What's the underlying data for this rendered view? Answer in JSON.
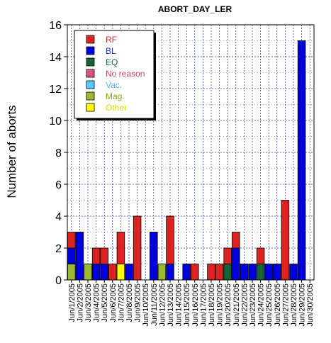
{
  "chart_data": {
    "type": "bar",
    "stacked": true,
    "title": "ABORT_DAY_LER",
    "xlabel": "",
    "ylabel": "Number of aborts",
    "ylim": [
      0,
      16
    ],
    "yticks": [
      0,
      2,
      4,
      6,
      8,
      10,
      12,
      14,
      16
    ],
    "grid": true,
    "legend_position": "top-left",
    "categories": [
      "Jun/1/2005",
      "Jun/2/2005",
      "Jun/3/2005",
      "Jun/4/2005",
      "Jun/5/2005",
      "Jun/6/2005",
      "Jun/7/2005",
      "Jun/8/2005",
      "Jun/9/2005",
      "Jun/10/2005",
      "Jun/11/2005",
      "Jun/12/2005",
      "Jun/13/2005",
      "Jun/14/2005",
      "Jun/15/2005",
      "Jun/16/2005",
      "Jun/17/2005",
      "Jun/18/2005",
      "Jun/19/2005",
      "Jun/20/2005",
      "Jun/21/2005",
      "Jun/22/2005",
      "Jun/23/2005",
      "Jun/24/2005",
      "Jun/25/2005",
      "Jun/26/2005",
      "Jun/27/2005",
      "Jun/28/2005",
      "Jun/29/2005",
      "Jun/30/2005"
    ],
    "series": [
      {
        "name": "Other",
        "color": "#ffff00",
        "values": [
          0,
          0,
          0,
          0,
          0,
          0,
          1,
          0,
          0,
          0,
          0,
          0,
          0,
          0,
          0,
          0,
          0,
          0,
          0,
          0,
          0,
          0,
          0,
          0,
          0,
          0,
          0,
          0,
          0,
          0
        ]
      },
      {
        "name": "Mag.",
        "color": "#99bb33",
        "values": [
          1,
          0,
          1,
          0,
          0,
          0,
          0,
          0,
          0,
          0,
          0,
          1,
          0,
          0,
          0,
          0,
          0,
          0,
          0,
          0,
          0,
          0,
          0,
          0,
          0,
          0,
          0,
          0,
          0,
          0
        ]
      },
      {
        "name": "Vac.",
        "color": "#55ccff",
        "values": [
          0,
          0,
          0,
          0,
          0,
          0,
          0,
          0,
          0,
          0,
          0,
          0,
          0,
          0,
          0,
          0,
          0,
          0,
          0,
          0,
          0,
          0,
          0,
          0,
          0,
          0,
          0,
          0,
          0,
          0
        ]
      },
      {
        "name": "No reason",
        "color": "#dd5577",
        "values": [
          0,
          0,
          0,
          0,
          0,
          0,
          0,
          0,
          0,
          0,
          0,
          0,
          0,
          0,
          0,
          0,
          0,
          0,
          0,
          0,
          0,
          0,
          0,
          0,
          0,
          0,
          0,
          0,
          0,
          0
        ]
      },
      {
        "name": "EQ",
        "color": "#116633",
        "values": [
          0,
          0,
          0,
          0,
          0,
          0,
          0,
          0,
          0,
          0,
          0,
          0,
          0,
          0,
          0,
          0,
          0,
          0,
          0,
          1,
          0,
          0,
          0,
          1,
          0,
          0,
          0,
          0,
          0,
          0
        ]
      },
      {
        "name": "BL",
        "color": "#0000dd",
        "values": [
          1,
          3,
          0,
          1,
          1,
          0,
          0,
          1,
          0,
          0,
          3,
          0,
          1,
          0,
          1,
          0,
          0,
          0,
          0,
          0,
          2,
          1,
          1,
          0,
          1,
          1,
          0,
          1,
          15,
          0
        ]
      },
      {
        "name": "RF",
        "color": "#dd2222",
        "values": [
          1,
          0,
          0,
          1,
          1,
          1,
          2,
          0,
          4,
          0,
          0,
          0,
          3,
          0,
          0,
          1,
          0,
          1,
          1,
          1,
          1,
          0,
          0,
          1,
          0,
          0,
          5,
          0,
          0,
          0
        ]
      }
    ]
  },
  "legend": {
    "items": [
      {
        "label": "RF",
        "color": "#dd2222",
        "text_color": "#cc3333"
      },
      {
        "label": "BL",
        "color": "#0000dd",
        "text_color": "#2233cc"
      },
      {
        "label": "EQ",
        "color": "#116633",
        "text_color": "#116633"
      },
      {
        "label": "No reason",
        "color": "#dd5577",
        "text_color": "#cc4466"
      },
      {
        "label": "Vac.",
        "color": "#55ccff",
        "text_color": "#44bbee"
      },
      {
        "label": "Mag.",
        "color": "#99bb33",
        "text_color": "#88aa22"
      },
      {
        "label": "Other",
        "color": "#ffff00",
        "text_color": "#dddd00"
      }
    ]
  }
}
